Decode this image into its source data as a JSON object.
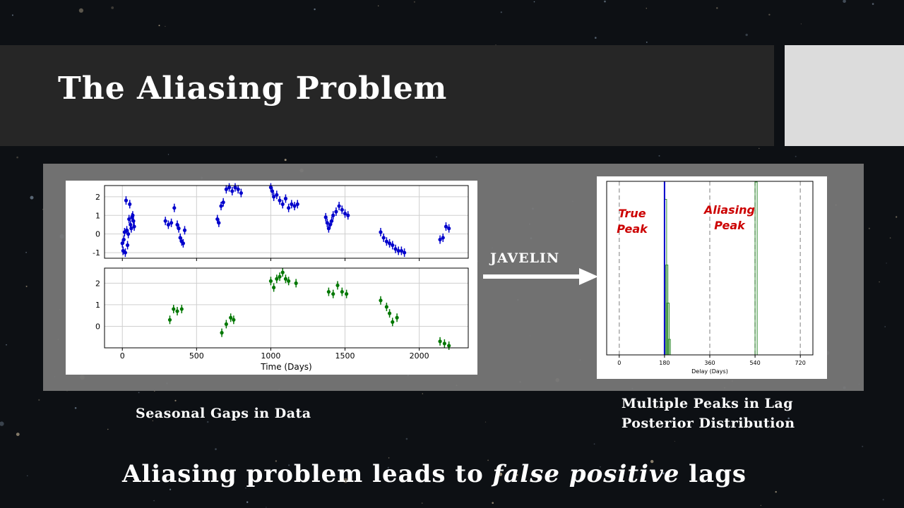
{
  "slide": {
    "title": "The Aliasing Problem",
    "arrow_label": "JAVELIN",
    "caption_left": "Seasonal Gaps in Data",
    "caption_right_line1": "Multiple Peaks in Lag",
    "caption_right_line2": "Posterior Distribution",
    "bottom_pre": "Aliasing problem leads to ",
    "bottom_emph": "false positive",
    "bottom_post": " lags",
    "colors": {
      "title_bar": "#262626",
      "accent_block": "#dcdcdc",
      "panel": "#7a7a7a",
      "annotation": "#cc0000"
    }
  },
  "chart_data": [
    {
      "type": "scatter",
      "panel": "top",
      "color": "#0000cc",
      "xlabel": "",
      "ylabel": "",
      "xlim": [
        -120,
        2330
      ],
      "ylim": [
        -1.3,
        2.6
      ],
      "yticks": [
        "2",
        "1",
        "0",
        "-1"
      ],
      "ytick_values": [
        2,
        1,
        0,
        -1
      ],
      "x": [
        0,
        5,
        10,
        15,
        20,
        25,
        30,
        35,
        40,
        45,
        50,
        55,
        60,
        65,
        70,
        75,
        80,
        290,
        310,
        330,
        350,
        370,
        380,
        390,
        400,
        410,
        420,
        640,
        650,
        665,
        680,
        700,
        720,
        740,
        760,
        780,
        800,
        1000,
        1010,
        1020,
        1040,
        1060,
        1080,
        1100,
        1120,
        1140,
        1160,
        1180,
        1370,
        1380,
        1390,
        1400,
        1410,
        1420,
        1440,
        1460,
        1480,
        1500,
        1520,
        1740,
        1760,
        1780,
        1800,
        1820,
        1840,
        1860,
        1880,
        1900,
        2140,
        2160,
        2180,
        2200
      ],
      "y": [
        -0.5,
        -0.9,
        -0.3,
        0.1,
        -1.0,
        1.8,
        0.2,
        -0.6,
        0.0,
        0.8,
        1.6,
        0.5,
        0.3,
        0.9,
        1.0,
        0.7,
        0.4,
        0.7,
        0.5,
        0.6,
        1.4,
        0.5,
        0.3,
        -0.2,
        -0.4,
        -0.5,
        0.2,
        0.8,
        0.6,
        1.5,
        1.7,
        2.4,
        2.5,
        2.3,
        2.5,
        2.4,
        2.2,
        2.5,
        2.3,
        2.0,
        2.1,
        1.8,
        1.6,
        1.9,
        1.4,
        1.6,
        1.5,
        1.6,
        0.9,
        0.6,
        0.3,
        0.5,
        0.7,
        1.0,
        1.2,
        1.5,
        1.3,
        1.1,
        1.0,
        0.1,
        -0.2,
        -0.4,
        -0.5,
        -0.6,
        -0.8,
        -0.9,
        -0.9,
        -1.0,
        -0.3,
        -0.2,
        0.4,
        0.3
      ]
    },
    {
      "type": "scatter",
      "panel": "bottom",
      "color": "#007700",
      "xlabel": "Time (Days)",
      "ylabel": "",
      "xlim": [
        -120,
        2330
      ],
      "ylim": [
        -1.0,
        2.7
      ],
      "xticks": [
        "0",
        "500",
        "1000",
        "1500",
        "2000"
      ],
      "xtick_values": [
        0,
        500,
        1000,
        1500,
        2000
      ],
      "yticks": [
        "2",
        "1",
        "0"
      ],
      "ytick_values": [
        2,
        1,
        0
      ],
      "x": [
        320,
        345,
        370,
        400,
        670,
        700,
        730,
        750,
        1000,
        1020,
        1040,
        1060,
        1080,
        1100,
        1120,
        1170,
        1390,
        1420,
        1450,
        1480,
        1510,
        1740,
        1780,
        1800,
        1820,
        1850,
        2140,
        2170,
        2200
      ],
      "y": [
        0.3,
        0.8,
        0.7,
        0.8,
        -0.3,
        0.1,
        0.4,
        0.3,
        2.1,
        1.8,
        2.2,
        2.3,
        2.5,
        2.2,
        2.1,
        2.0,
        1.6,
        1.5,
        1.9,
        1.6,
        1.5,
        1.2,
        0.9,
        0.6,
        0.2,
        0.4,
        -0.7,
        -0.8,
        -0.9
      ]
    },
    {
      "type": "bar",
      "title": "",
      "xlabel": "Delay (Days)",
      "xlim": [
        -50,
        770
      ],
      "xticks": [
        "0",
        "180",
        "360",
        "540",
        "720"
      ],
      "xtick_values": [
        0,
        180,
        360,
        540,
        720
      ],
      "dashed_lines": [
        0,
        180,
        360,
        540,
        720
      ],
      "true_lag": 180,
      "bins": [
        180,
        185,
        190,
        195,
        540
      ],
      "heights": [
        0.9,
        0.52,
        0.3,
        0.09,
        1.0
      ],
      "annotations": [
        {
          "text_line1": "True",
          "text_line2": "Peak"
        },
        {
          "text_line1": "Aliasing",
          "text_line2": "Peak"
        }
      ]
    }
  ]
}
